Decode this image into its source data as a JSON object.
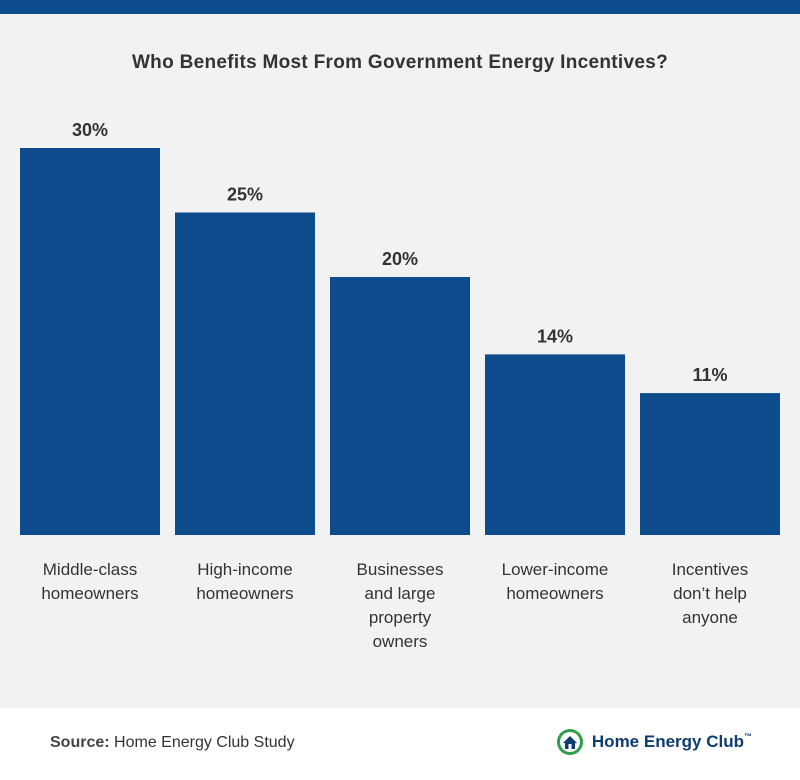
{
  "title": "Who Benefits Most From Government Energy Incentives?",
  "colors": {
    "bar": "#0e4b8c",
    "band": "#0e4b8c",
    "background": "#f2f2f2",
    "text": "#333333"
  },
  "chart_data": {
    "type": "bar",
    "title": "Who Benefits Most From Government Energy Incentives?",
    "categories": [
      [
        "Middle-class",
        "homeowners"
      ],
      [
        "High-income",
        "homeowners"
      ],
      [
        "Businesses",
        "and large",
        "property",
        "owners"
      ],
      [
        "Lower-income",
        "homeowners"
      ],
      [
        "Incentives",
        "don’t help",
        "anyone"
      ]
    ],
    "values": [
      30,
      25,
      20,
      14,
      11
    ],
    "value_labels": [
      "30%",
      "25%",
      "20%",
      "14%",
      "11%"
    ],
    "xlabel": "",
    "ylabel": "",
    "ylim": [
      0,
      30
    ],
    "grid": false,
    "legend": "none"
  },
  "footer": {
    "source_label": "Source:",
    "source_text": "Home Energy Club Study",
    "brand_name": "Home Energy Club",
    "brand_tm": "™"
  }
}
